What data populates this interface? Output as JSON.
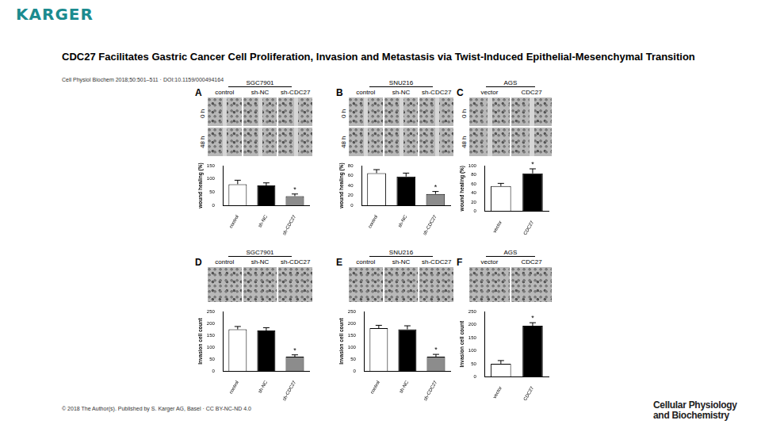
{
  "page": {
    "publisher": "KARGER",
    "title": "CDC27 Facilitates Gastric Cancer Cell Proliferation, Invasion and Metastasis via Twist-Induced Epithelial-Mesenchymal Transition",
    "citation": "Cell Physiol Biochem 2018;50:501–511 · DOI:10.1159/000494164",
    "copyright": "© 2018 The Author(s). Published by S. Karger AG, Basel · CC BY-NC-ND 4.0",
    "journal": [
      "Cellular Physiology",
      "and Biochemistry"
    ]
  },
  "image_panels": [
    {
      "letter": "A",
      "title": "SGC7901",
      "columns": [
        "control",
        "sh-NC",
        "sh-CDC27"
      ],
      "rows": [
        "0 h",
        "48 h"
      ]
    },
    {
      "letter": "B",
      "title": "SNU216",
      "columns": [
        "control",
        "sh-NC",
        "sh-CDC27"
      ],
      "rows": [
        "0 h",
        "48 h"
      ]
    },
    {
      "letter": "C",
      "title": "AGS",
      "columns": [
        "vector",
        "CDC27"
      ],
      "rows": [
        "0 h",
        "48 h"
      ]
    },
    {
      "letter": "D",
      "title": "SGC7901",
      "columns": [
        "control",
        "sh-NC",
        "sh-CDC27"
      ]
    },
    {
      "letter": "E",
      "title": "SNU216",
      "columns": [
        "control",
        "sh-NC",
        "sh-CDC27"
      ]
    },
    {
      "letter": "F",
      "title": "AGS",
      "columns": [
        "vector",
        "CDC27"
      ]
    }
  ],
  "chart_data": [
    {
      "type": "bar",
      "y_label": "wound healing (%)",
      "categories": [
        "control",
        "sh-NC",
        "sh-CDC27"
      ],
      "values": [
        80,
        75,
        35
      ],
      "errors": [
        15,
        10,
        8
      ],
      "colors": [
        "#ffffff",
        "#000000",
        "#8c8c8c"
      ],
      "ylim": [
        0,
        150
      ],
      "yticks": [
        0,
        50,
        100,
        150
      ],
      "grid": false,
      "annotations": [
        {
          "category": "sh-CDC27",
          "text": "*"
        }
      ]
    },
    {
      "type": "bar",
      "y_label": "wound healing (%)",
      "categories": [
        "control",
        "sh-NC",
        "sh-CDC27"
      ],
      "values": [
        65,
        58,
        23
      ],
      "errors": [
        7,
        7,
        5
      ],
      "colors": [
        "#ffffff",
        "#000000",
        "#8c8c8c"
      ],
      "ylim": [
        0,
        80
      ],
      "yticks": [
        0,
        20,
        40,
        60,
        80
      ],
      "grid": false,
      "annotations": [
        {
          "category": "sh-CDC27",
          "text": "*"
        }
      ]
    },
    {
      "type": "bar",
      "y_label": "wound healing (%)",
      "categories": [
        "vector",
        "CDC27"
      ],
      "values": [
        55,
        83
      ],
      "errors": [
        6,
        10
      ],
      "colors": [
        "#ffffff",
        "#000000"
      ],
      "ylim": [
        0,
        100
      ],
      "yticks": [
        0,
        20,
        40,
        60,
        80,
        100
      ],
      "grid": false,
      "annotations": [
        {
          "category": "CDC27",
          "text": "*"
        }
      ]
    },
    {
      "type": "bar",
      "y_label": "Invasion cell count",
      "categories": [
        "control",
        "sh-NC",
        "sh-CDC27"
      ],
      "values": [
        175,
        170,
        60
      ],
      "errors": [
        12,
        12,
        8
      ],
      "colors": [
        "#ffffff",
        "#000000",
        "#8c8c8c"
      ],
      "ylim": [
        0,
        250
      ],
      "yticks": [
        0,
        50,
        100,
        150,
        200,
        250
      ],
      "grid": false,
      "annotations": [
        {
          "category": "sh-CDC27",
          "text": "*"
        }
      ]
    },
    {
      "type": "bar",
      "y_label": "Invasion cell count",
      "categories": [
        "control",
        "sh-NC",
        "sh-CDC27"
      ],
      "values": [
        180,
        175,
        60
      ],
      "errors": [
        12,
        15,
        10
      ],
      "colors": [
        "#ffffff",
        "#000000",
        "#8c8c8c"
      ],
      "ylim": [
        0,
        250
      ],
      "yticks": [
        0,
        50,
        100,
        150,
        200,
        250
      ],
      "grid": false,
      "annotations": [
        {
          "category": "sh-CDC27",
          "text": "*"
        }
      ]
    },
    {
      "type": "bar",
      "y_label": "Invasion cell count",
      "categories": [
        "vector",
        "CDC27"
      ],
      "values": [
        50,
        195
      ],
      "errors": [
        12,
        12
      ],
      "colors": [
        "#ffffff",
        "#000000"
      ],
      "ylim": [
        0,
        250
      ],
      "yticks": [
        0,
        50,
        100,
        150,
        200,
        250
      ],
      "grid": false,
      "annotations": [
        {
          "category": "CDC27",
          "text": "*"
        }
      ]
    }
  ]
}
